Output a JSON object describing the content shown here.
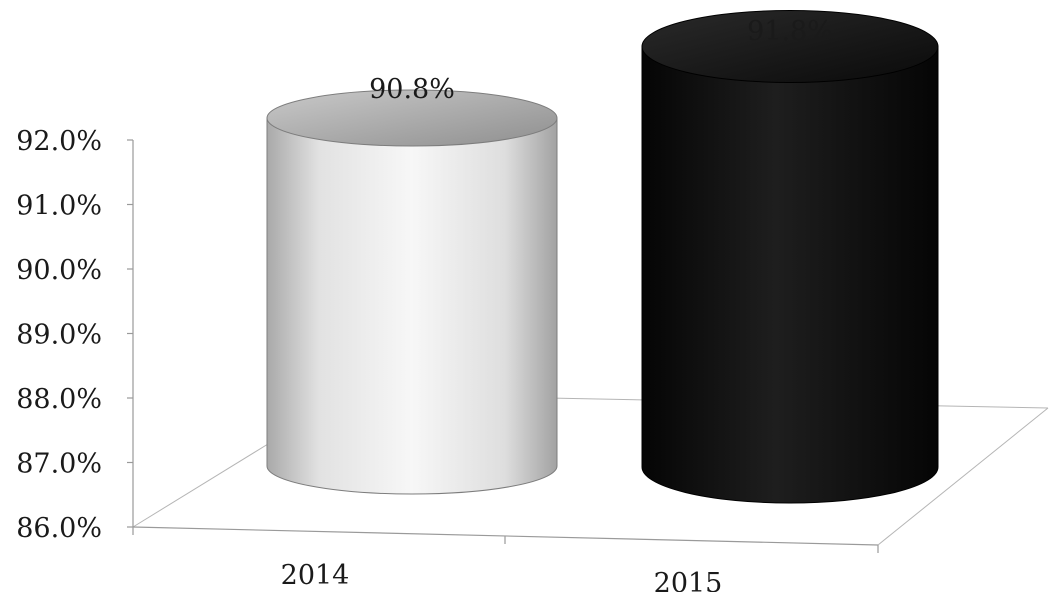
{
  "chart_data": {
    "type": "bar",
    "style": "3d-cylinder",
    "categories": [
      "2014",
      "2015"
    ],
    "values": [
      90.8,
      91.8
    ],
    "data_labels": [
      "90.8%",
      "91.8%"
    ],
    "y_tick_labels": [
      "92.0%",
      "91.0%",
      "90.0%",
      "89.0%",
      "88.0%",
      "87.0%",
      "86.0%"
    ],
    "ylim": [
      86.0,
      92.0
    ],
    "grid": false,
    "legend": "none",
    "colors": {
      "2014": "#e6e6e6",
      "2015": "#111111"
    }
  }
}
